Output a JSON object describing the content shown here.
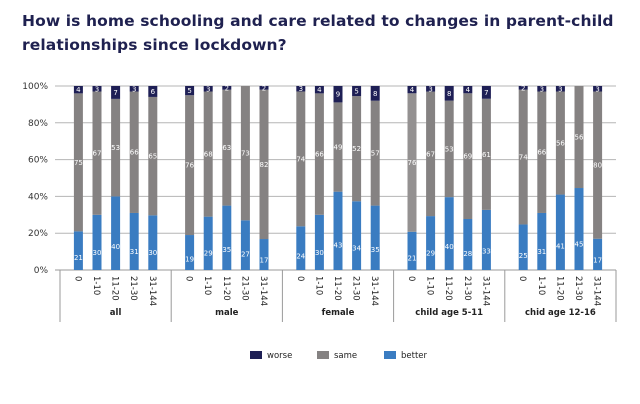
{
  "chart_data": {
    "type": "bar",
    "stacked": true,
    "percent": true,
    "title": "How is home schooling and care related to changes in parent-child relationships since lockdown?",
    "xlabel": "",
    "ylabel": "",
    "ylim": [
      0,
      100
    ],
    "yticks": [
      "0%",
      "20%",
      "40%",
      "60%",
      "80%",
      "100%"
    ],
    "grid": true,
    "legend_position": "bottom",
    "groups": [
      {
        "name": "all",
        "categories": [
          "0",
          "1-10",
          "11-20",
          "21-30",
          "31-144"
        ]
      },
      {
        "name": "male",
        "categories": [
          "0",
          "1-10",
          "11-20",
          "21-30",
          "31-144"
        ]
      },
      {
        "name": "female",
        "categories": [
          "0",
          "1-10",
          "11-20",
          "21-30",
          "31-144"
        ]
      },
      {
        "name": "child age 5-11",
        "categories": [
          "0",
          "1-10",
          "11-20",
          "21-30",
          "31-144"
        ]
      },
      {
        "name": "chid age 12-16",
        "categories": [
          "0",
          "1-10",
          "11-20",
          "21-30",
          "31-144"
        ]
      }
    ],
    "series": [
      {
        "name": "better",
        "color": "#3a7cc1",
        "values": [
          21,
          30,
          40,
          31,
          30,
          19,
          29,
          35,
          27,
          17,
          24,
          30,
          43,
          34,
          35,
          21,
          29,
          40,
          28,
          33,
          25,
          31,
          41,
          45,
          17
        ]
      },
      {
        "name": "same",
        "color": "#858282",
        "values": [
          75,
          67,
          53,
          66,
          65,
          76,
          68,
          63,
          73,
          82,
          74,
          66,
          49,
          52,
          57,
          76,
          67,
          53,
          69,
          61,
          74,
          66,
          56,
          56,
          80
        ]
      },
      {
        "name": "worse",
        "color": "#1e1f55",
        "values": [
          4,
          3,
          7,
          3,
          6,
          5,
          3,
          2,
          null,
          2,
          3,
          4,
          9,
          5,
          8,
          4,
          3,
          8,
          4,
          7,
          2,
          3,
          3,
          null,
          3
        ]
      }
    ],
    "legend": [
      "worse",
      "same",
      "better"
    ]
  }
}
